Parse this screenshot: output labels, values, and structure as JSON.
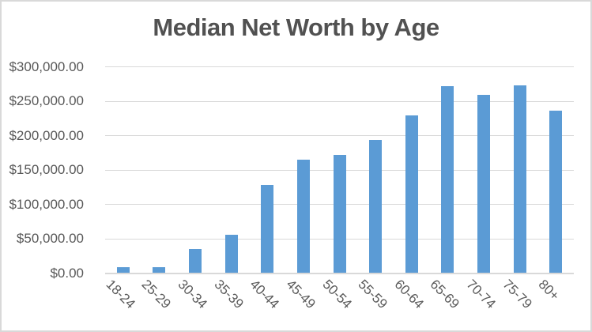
{
  "chart_data": {
    "type": "bar",
    "title": "Median Net Worth by Age",
    "categories": [
      "18-24",
      "25-29",
      "30-34",
      "35-39",
      "40-44",
      "45-49",
      "50-54",
      "55-59",
      "60-64",
      "65-69",
      "70-74",
      "75-79",
      "80+"
    ],
    "values": [
      8000,
      7500,
      35000,
      55500,
      127500,
      164000,
      171500,
      193500,
      229000,
      271800,
      258500,
      273000,
      235200
    ],
    "xlabel": "",
    "ylabel": "",
    "ylim": [
      0,
      300000
    ],
    "y_ticks": [
      {
        "value": 0,
        "label": "$0.00"
      },
      {
        "value": 50000,
        "label": "$50,000.00"
      },
      {
        "value": 100000,
        "label": "$100,000.00"
      },
      {
        "value": 150000,
        "label": "$150,000.00"
      },
      {
        "value": 200000,
        "label": "$200,000.00"
      },
      {
        "value": 250000,
        "label": "$250,000.00"
      },
      {
        "value": 300000,
        "label": "$300,000.00"
      }
    ],
    "grid": true,
    "legend": "none",
    "colors": {
      "bar": "#5B9BD5",
      "gridline": "#D9D9D9",
      "axis_line": "#D9D9D9",
      "tick_text": "#595959",
      "title_text": "#515151",
      "background": "#FFFFFF",
      "border": "#D9D9D9"
    }
  }
}
